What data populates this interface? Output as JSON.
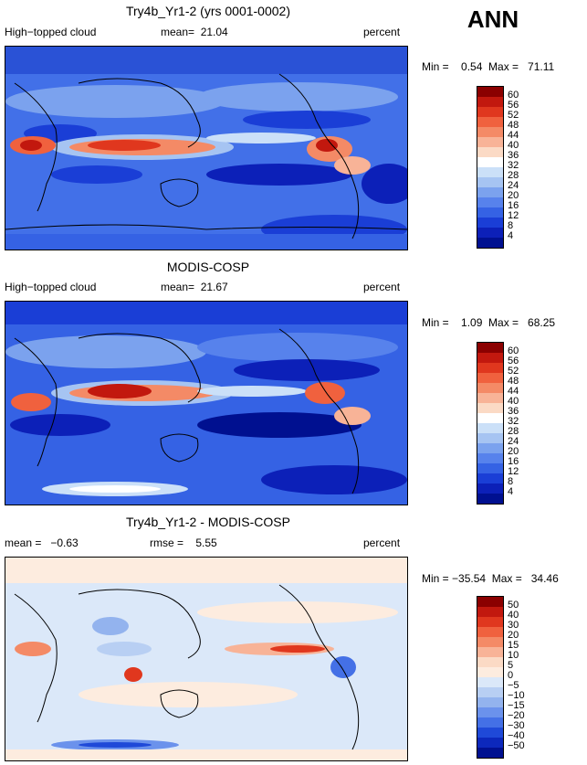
{
  "season": "ANN",
  "panels": [
    {
      "title": "Try4b_Yr1-2 (yrs 0001-0002)",
      "left_label": "High−topped cloud",
      "center_label": "mean=  21.04",
      "right_label": "percent",
      "minmax": "Min =    0.54  Max =   71.11",
      "colorbar_ticks": [
        "60",
        "56",
        "52",
        "48",
        "44",
        "40",
        "36",
        "32",
        "28",
        "24",
        "20",
        "16",
        "12",
        "8",
        "4"
      ]
    },
    {
      "title": "MODIS-COSP",
      "left_label": "High−topped cloud",
      "center_label": "mean=  21.67",
      "right_label": "percent",
      "minmax": "Min =    1.09  Max =   68.25",
      "colorbar_ticks": [
        "60",
        "56",
        "52",
        "48",
        "44",
        "40",
        "36",
        "32",
        "28",
        "24",
        "20",
        "16",
        "12",
        "8",
        "4"
      ]
    },
    {
      "title": "Try4b_Yr1-2 - MODIS-COSP",
      "left_label": "mean =   −0.63",
      "center_label": "rmse =    5.55",
      "right_label": "percent",
      "minmax": "Min = −35.54  Max =   34.46",
      "colorbar_ticks": [
        "50",
        "40",
        "30",
        "20",
        "15",
        "10",
        "5",
        "0",
        "−5",
        "−10",
        "−15",
        "−20",
        "−30",
        "−40",
        "−50"
      ]
    }
  ],
  "colors": {
    "abs_scale": [
      "#8b0000",
      "#c2180e",
      "#e0371e",
      "#f0613e",
      "#f48a66",
      "#f8b397",
      "#fbdac5",
      "#ffffff",
      "#cbe0f8",
      "#a6c4f2",
      "#7ba2ee",
      "#5782ec",
      "#3562e4",
      "#1a3ed6",
      "#0c20b8",
      "#001090"
    ],
    "diff_scale": [
      "#8b0000",
      "#c2180e",
      "#e0371e",
      "#f0613e",
      "#f48a66",
      "#f8b397",
      "#fbdac5",
      "#fdecdf",
      "#dbe8f9",
      "#b8cff3",
      "#93b3ee",
      "#6b92ec",
      "#4470e6",
      "#1f49d8",
      "#0c28bc",
      "#001090"
    ]
  }
}
